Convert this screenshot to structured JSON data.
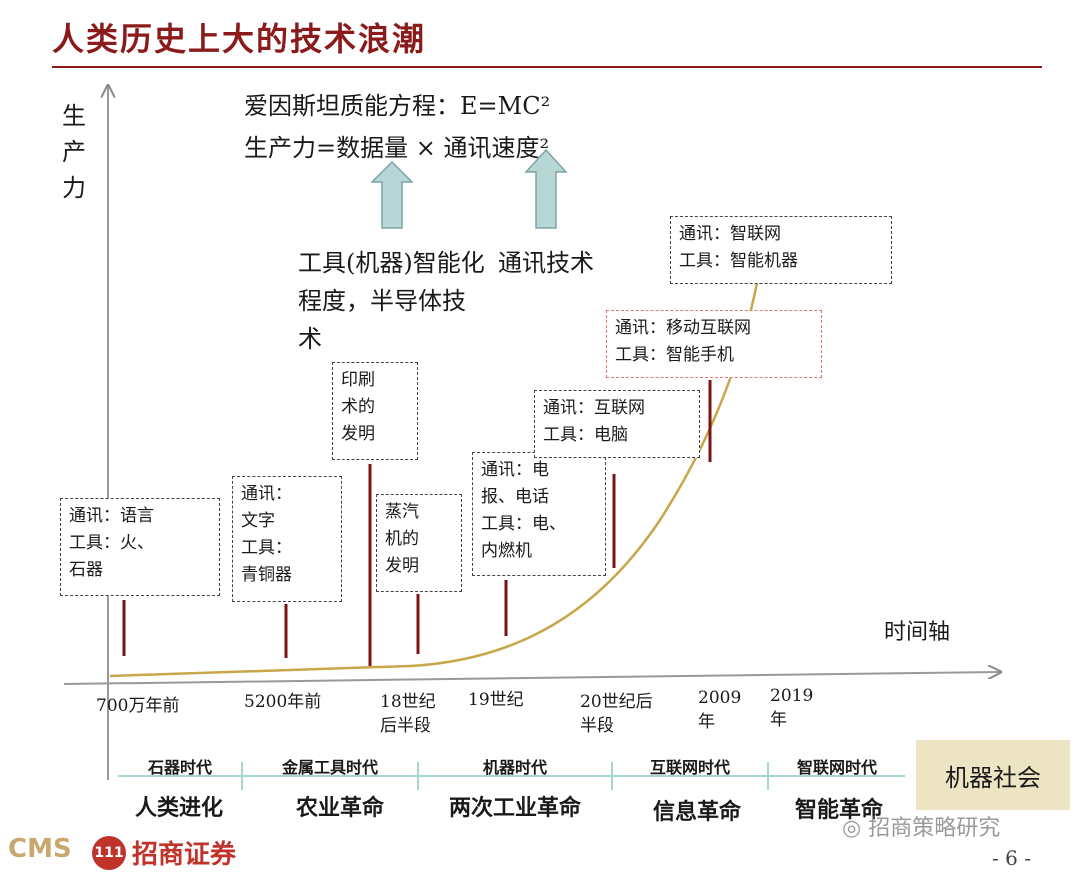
{
  "title": "人类历史上大的技术浪潮",
  "y_axis_label": "生产力",
  "x_axis_label": "时间轴",
  "formula_einstein": "爱因斯坦质能方程：E=MC²",
  "formula_productivity": "生产力=数据量 × 通讯速度²",
  "notes": {
    "tools": "工具(机器)智能化程度，半导体技术",
    "comm": "通讯技术"
  },
  "boxes": [
    {
      "id": "b1",
      "text": "通讯：语言\n工具：火、\n石器"
    },
    {
      "id": "b2",
      "text": "通讯：\n文字\n工具：\n青铜器"
    },
    {
      "id": "b3",
      "text": "印刷\n术的\n发明"
    },
    {
      "id": "b4",
      "text": "蒸汽\n机的\n发明"
    },
    {
      "id": "b5",
      "text": "通讯：电\n报、电话\n工具：电、\n内燃机"
    },
    {
      "id": "b6",
      "text": "通讯：互联网\n工具：电脑"
    },
    {
      "id": "b7",
      "text": "通讯：移动互联网\n工具：智能手机"
    },
    {
      "id": "b8",
      "text": "通讯：智联网\n工具：智能机器"
    }
  ],
  "ticks": [
    "700万年前",
    "5200年前",
    "18世纪\n后半段",
    "19世纪",
    "20世纪后\n半段",
    "2009\n年",
    "2019\n年"
  ],
  "eras": [
    "石器时代",
    "金属工具时代",
    "机器时代",
    "互联网时代",
    "智联网时代"
  ],
  "revolutions": [
    "人类进化",
    "农业革命",
    "两次工业革命",
    "信息革命",
    "智能革命"
  ],
  "future_label": "机器社会",
  "footer": {
    "logo_cms": "CMS",
    "logo_name": "招商证券",
    "watermark": "招商策略研究",
    "page": "- 6 -"
  },
  "colors": {
    "title": "#8b1a1a",
    "curve": "#c8a64a",
    "marker": "#7a1414",
    "up_arrow": "#b7d6d6",
    "future_box": "#ece4c3"
  }
}
